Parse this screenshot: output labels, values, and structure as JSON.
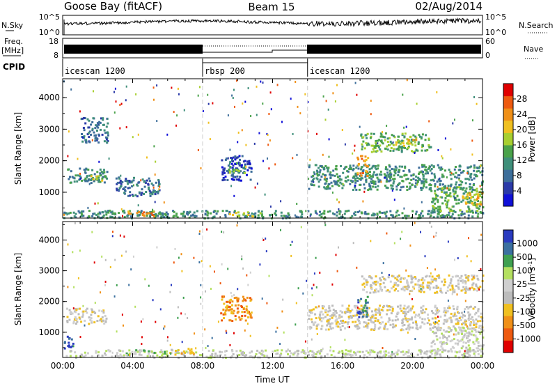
{
  "header": {
    "station": "Goose Bay (fitACF)",
    "beam": "Beam 15",
    "date": "02/Aug/2014"
  },
  "strip": {
    "nsky_label": "N.Sky",
    "nsearch_label": "N.Search",
    "nsky_ticks": [
      "10^5",
      "10^0"
    ],
    "nsearch_ticks": [
      "10^5",
      "10^0"
    ],
    "freq_label": "Freq.",
    "freq_unit": "[MHz]",
    "freq_ticks": [
      "18",
      "8"
    ],
    "nave_label": "Nave",
    "nave_ticks": [
      "60",
      "0"
    ],
    "cpid_label": "CPID",
    "cpid_segments": [
      {
        "name": "icescan 1200",
        "start_h": 0,
        "end_h": 8.0
      },
      {
        "name": "rbsp 200",
        "start_h": 8.0,
        "end_h": 14.0
      },
      {
        "name": "icescan 1200",
        "start_h": 14.0,
        "end_h": 24.0
      }
    ]
  },
  "colors": {
    "power": [
      "#1010d8",
      "#2b3aa8",
      "#3d6e9a",
      "#3f8f7a",
      "#4aa24a",
      "#a8cf30",
      "#f0c020",
      "#f09018",
      "#ee5a10",
      "#e00000"
    ],
    "velocity": [
      "#e00000",
      "#ee5a10",
      "#f09018",
      "#f0c020",
      "#bcbcbc",
      "#cfcfcf",
      "#b4e060",
      "#3fa050",
      "#3b70a0",
      "#2a3bc0"
    ]
  },
  "chart_data": [
    {
      "type": "heatmap",
      "name": "power",
      "xlabel": "",
      "ylabel": "Slant Range [km]",
      "xlim": [
        0,
        24
      ],
      "ylim": [
        180,
        4600
      ],
      "yticks": [
        "1000",
        "2000",
        "3000",
        "4000"
      ],
      "colorbar_label": "Power [dB]",
      "colorbar_ticks": [
        "4",
        "8",
        "12",
        "16",
        "20",
        "24",
        "28"
      ],
      "regions": [
        {
          "x": [
            0.0,
            24.0
          ],
          "y": [
            200,
            450
          ],
          "level": 3
        },
        {
          "x": [
            3.6,
            5.2
          ],
          "y": [
            250,
            420
          ],
          "level": 7
        },
        {
          "x": [
            9.5,
            11.5
          ],
          "y": [
            250,
            400
          ],
          "level": 5
        },
        {
          "x": [
            0.2,
            2.5
          ],
          "y": [
            1300,
            1800
          ],
          "level": 3
        },
        {
          "x": [
            1.5,
            2.4
          ],
          "y": [
            1400,
            1550
          ],
          "level": 5
        },
        {
          "x": [
            3.0,
            5.5
          ],
          "y": [
            900,
            1500
          ],
          "level": 2
        },
        {
          "x": [
            9.0,
            10.8
          ],
          "y": [
            1400,
            2200
          ],
          "level": 1
        },
        {
          "x": [
            9.4,
            10.4
          ],
          "y": [
            1600,
            2000
          ],
          "level": 4
        },
        {
          "x": [
            14.0,
            24.0
          ],
          "y": [
            1100,
            1900
          ],
          "level": 3
        },
        {
          "x": [
            16.8,
            17.4
          ],
          "y": [
            1500,
            2200
          ],
          "level": 7
        },
        {
          "x": [
            17.0,
            21.0
          ],
          "y": [
            2300,
            2900
          ],
          "level": 4
        },
        {
          "x": [
            19.0,
            20.2
          ],
          "y": [
            2500,
            2700
          ],
          "level": 6
        },
        {
          "x": [
            21.0,
            24.0
          ],
          "y": [
            400,
            1200
          ],
          "level": 4
        },
        {
          "x": [
            22.8,
            24.0
          ],
          "y": [
            600,
            1000
          ],
          "level": 6
        },
        {
          "x": [
            1.0,
            2.6
          ],
          "y": [
            2600,
            3400
          ],
          "level": 2
        }
      ]
    },
    {
      "type": "heatmap",
      "name": "velocity",
      "xlabel": "Time UT",
      "ylabel": "Slant Range [km]",
      "xlim": [
        0,
        24
      ],
      "ylim": [
        180,
        4600
      ],
      "yticks": [
        "1000",
        "2000",
        "3000",
        "4000"
      ],
      "xticks": [
        "00:00",
        "04:00",
        "08:00",
        "12:00",
        "16:00",
        "20:00",
        "00:00"
      ],
      "colorbar_label": "Velocity [m s^-1]",
      "colorbar_ticks": [
        "1000",
        "500",
        "100",
        "25",
        "-25",
        "-100",
        "-500",
        "-1000"
      ],
      "regions": [
        {
          "x": [
            0.0,
            24.0
          ],
          "y": [
            200,
            450
          ],
          "level": 5
        },
        {
          "x": [
            3.6,
            6.0
          ],
          "y": [
            250,
            450
          ],
          "level": 6
        },
        {
          "x": [
            6.0,
            7.5
          ],
          "y": [
            300,
            500
          ],
          "level": 3
        },
        {
          "x": [
            0.2,
            2.5
          ],
          "y": [
            1300,
            1800
          ],
          "level": 4
        },
        {
          "x": [
            9.0,
            10.8
          ],
          "y": [
            1400,
            2200
          ],
          "level": 2
        },
        {
          "x": [
            14.0,
            24.0
          ],
          "y": [
            1100,
            1900
          ],
          "level": 4
        },
        {
          "x": [
            16.8,
            17.4
          ],
          "y": [
            1500,
            2200
          ],
          "level": 8
        },
        {
          "x": [
            17.0,
            24.0
          ],
          "y": [
            2300,
            2900
          ],
          "level": 4
        },
        {
          "x": [
            21.0,
            24.0
          ],
          "y": [
            400,
            1200
          ],
          "level": 5
        },
        {
          "x": [
            0.0,
            0.6
          ],
          "y": [
            500,
            900
          ],
          "level": 9
        }
      ]
    }
  ]
}
